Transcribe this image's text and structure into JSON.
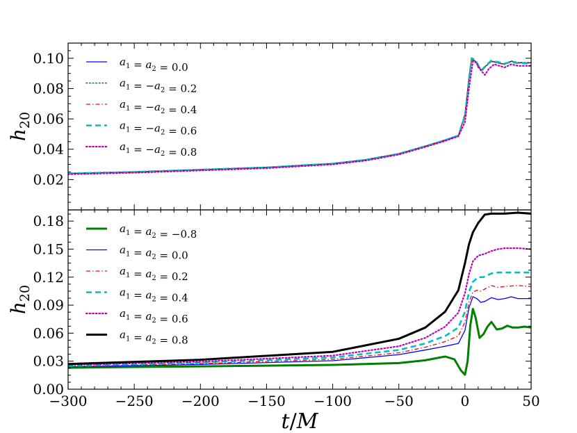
{
  "chart_data": [
    {
      "type": "line",
      "panel": "top",
      "ylabel": "h20",
      "ylabel_main": "h",
      "ylabel_sub": "20",
      "xlim": [
        -300,
        50
      ],
      "ylim": [
        0.0,
        0.11
      ],
      "yticks": [
        0.02,
        0.04,
        0.06,
        0.08,
        0.1
      ],
      "ytick_labels": [
        "0.02",
        "0.04",
        "0.06",
        "0.08",
        "0.10"
      ],
      "legend_position": "upper-left",
      "grid": false,
      "series": [
        {
          "name": "a1 = a2 = 0.0",
          "color": "#0000ff",
          "style": "solid",
          "width": 1.3,
          "x": [
            -300,
            -250,
            -200,
            -150,
            -100,
            -75,
            -50,
            -30,
            -15,
            -5,
            0,
            3,
            5,
            8,
            10,
            13,
            16,
            20,
            25,
            30,
            35,
            40,
            50
          ],
          "y": [
            0.024,
            0.025,
            0.0265,
            0.028,
            0.0305,
            0.033,
            0.037,
            0.042,
            0.046,
            0.049,
            0.063,
            0.087,
            0.099,
            0.098,
            0.094,
            0.092,
            0.095,
            0.098,
            0.097,
            0.096,
            0.098,
            0.097,
            0.097
          ]
        },
        {
          "name": "a1 = −a2 = 0.2",
          "color": "#008000",
          "style": "dotted",
          "width": 1.5,
          "x": [
            -300,
            -250,
            -200,
            -150,
            -100,
            -75,
            -50,
            -30,
            -15,
            -5,
            0,
            3,
            5,
            8,
            10,
            13,
            16,
            20,
            25,
            30,
            35,
            40,
            50
          ],
          "y": [
            0.0242,
            0.0252,
            0.0267,
            0.0282,
            0.0307,
            0.0332,
            0.0372,
            0.0422,
            0.0462,
            0.0492,
            0.0632,
            0.0872,
            0.0992,
            0.0982,
            0.0942,
            0.0922,
            0.0952,
            0.0982,
            0.0972,
            0.0962,
            0.0982,
            0.0972,
            0.0972
          ]
        },
        {
          "name": "a1 = −a2 = 0.4",
          "color": "#ff0000",
          "style": "dashdot",
          "width": 1.3,
          "x": [
            -300,
            -250,
            -200,
            -150,
            -100,
            -75,
            -50,
            -30,
            -15,
            -5,
            0,
            3,
            5,
            8,
            10,
            13,
            16,
            20,
            25,
            30,
            35,
            40,
            50
          ],
          "y": [
            0.0238,
            0.0248,
            0.0263,
            0.0278,
            0.0303,
            0.0328,
            0.0368,
            0.0418,
            0.0458,
            0.0488,
            0.0628,
            0.0868,
            0.0988,
            0.0978,
            0.0938,
            0.0918,
            0.0948,
            0.0978,
            0.0968,
            0.0958,
            0.0978,
            0.0968,
            0.0968
          ]
        },
        {
          "name": "a1 = −a2 = 0.6",
          "color": "#00bfbf",
          "style": "dashed",
          "width": 2.6,
          "x": [
            -300,
            -250,
            -200,
            -150,
            -100,
            -75,
            -50,
            -30,
            -15,
            -5,
            0,
            3,
            5,
            8,
            10,
            13,
            16,
            20,
            25,
            30,
            35,
            40,
            50
          ],
          "y": [
            0.024,
            0.025,
            0.0265,
            0.028,
            0.0305,
            0.033,
            0.037,
            0.042,
            0.046,
            0.049,
            0.062,
            0.086,
            0.1,
            0.099,
            0.095,
            0.0925,
            0.0955,
            0.0985,
            0.0975,
            0.0965,
            0.0975,
            0.0968,
            0.0965
          ]
        },
        {
          "name": "a1 = −a2 = 0.8",
          "color": "#bf00bf",
          "style": "dotted",
          "width": 2.2,
          "x": [
            -300,
            -250,
            -200,
            -150,
            -100,
            -75,
            -50,
            -30,
            -15,
            -5,
            0,
            3,
            6,
            9,
            12,
            15,
            18,
            22,
            26,
            30,
            35,
            40,
            50
          ],
          "y": [
            0.0235,
            0.0245,
            0.026,
            0.0275,
            0.03,
            0.0325,
            0.0365,
            0.0415,
            0.0455,
            0.0485,
            0.058,
            0.08,
            0.098,
            0.097,
            0.092,
            0.089,
            0.093,
            0.096,
            0.095,
            0.094,
            0.096,
            0.095,
            0.095
          ]
        }
      ]
    },
    {
      "type": "line",
      "panel": "bottom",
      "xlabel": "t/M",
      "ylabel": "h20",
      "ylabel_main": "h",
      "ylabel_sub": "20",
      "xlim": [
        -300,
        50
      ],
      "ylim": [
        0.0,
        0.192
      ],
      "xticks": [
        -300,
        -250,
        -200,
        -150,
        -100,
        -50,
        0,
        50
      ],
      "xtick_labels": [
        "−300",
        "−250",
        "−200",
        "−150",
        "−100",
        "−50",
        "0",
        "50"
      ],
      "yticks": [
        0.0,
        0.03,
        0.06,
        0.09,
        0.12,
        0.15,
        0.18
      ],
      "ytick_labels": [
        "0.00",
        "0.03",
        "0.06",
        "0.09",
        "0.12",
        "0.15",
        "0.18"
      ],
      "legend_position": "upper-left",
      "grid": false,
      "series": [
        {
          "name": "a1 = a2 = −0.8",
          "color": "#008000",
          "style": "solid",
          "width": 3,
          "x": [
            -300,
            -200,
            -100,
            -50,
            -30,
            -15,
            -8,
            -3,
            0,
            2,
            4,
            6,
            8,
            11,
            14,
            17,
            20,
            24,
            28,
            32,
            36,
            40,
            45,
            50
          ],
          "y": [
            0.023,
            0.0245,
            0.026,
            0.028,
            0.031,
            0.035,
            0.032,
            0.02,
            0.0155,
            0.03,
            0.068,
            0.086,
            0.077,
            0.055,
            0.059,
            0.067,
            0.072,
            0.064,
            0.065,
            0.068,
            0.066,
            0.066,
            0.067,
            0.066
          ]
        },
        {
          "name": "a1 = a2 = 0.0",
          "color": "#0000ff",
          "style": "solid",
          "width": 1.3,
          "x": [
            -300,
            -200,
            -100,
            -50,
            -30,
            -15,
            -5,
            0,
            3,
            6,
            9,
            12,
            15,
            20,
            25,
            30,
            35,
            40,
            50
          ],
          "y": [
            0.024,
            0.0265,
            0.0305,
            0.037,
            0.042,
            0.046,
            0.049,
            0.063,
            0.087,
            0.099,
            0.097,
            0.093,
            0.094,
            0.098,
            0.096,
            0.097,
            0.099,
            0.097,
            0.097
          ]
        },
        {
          "name": "a1 = a2 = 0.2",
          "color": "#ff0000",
          "style": "dashdot",
          "width": 1.3,
          "x": [
            -300,
            -200,
            -100,
            -50,
            -30,
            -15,
            -5,
            0,
            3,
            6,
            9,
            12,
            16,
            20,
            25,
            30,
            40,
            50
          ],
          "y": [
            0.0245,
            0.0275,
            0.032,
            0.039,
            0.045,
            0.051,
            0.057,
            0.072,
            0.093,
            0.104,
            0.106,
            0.105,
            0.108,
            0.111,
            0.109,
            0.11,
            0.111,
            0.11
          ]
        },
        {
          "name": "a1 = a2 = 0.4",
          "color": "#00bfbf",
          "style": "dashed",
          "width": 2.6,
          "x": [
            -300,
            -200,
            -100,
            -50,
            -30,
            -15,
            -5,
            0,
            3,
            6,
            10,
            14,
            20,
            25,
            30,
            40,
            50
          ],
          "y": [
            0.025,
            0.0285,
            0.034,
            0.042,
            0.049,
            0.057,
            0.066,
            0.083,
            0.104,
            0.115,
            0.12,
            0.12,
            0.124,
            0.125,
            0.125,
            0.125,
            0.125
          ]
        },
        {
          "name": "a1 = a2 = 0.6",
          "color": "#bf00bf",
          "style": "dotted",
          "width": 2.2,
          "x": [
            -300,
            -200,
            -100,
            -50,
            -30,
            -15,
            -5,
            0,
            3,
            6,
            10,
            15,
            20,
            25,
            30,
            40,
            50
          ],
          "y": [
            0.026,
            0.0295,
            0.036,
            0.046,
            0.055,
            0.067,
            0.082,
            0.103,
            0.123,
            0.137,
            0.143,
            0.145,
            0.148,
            0.15,
            0.151,
            0.151,
            0.15
          ]
        },
        {
          "name": "a1 = a2 = 0.8",
          "color": "#000000",
          "style": "solid",
          "width": 3,
          "x": [
            -300,
            -200,
            -100,
            -50,
            -30,
            -15,
            -5,
            0,
            3,
            6,
            10,
            15,
            20,
            30,
            40,
            50
          ],
          "y": [
            0.027,
            0.0315,
            0.04,
            0.054,
            0.066,
            0.083,
            0.106,
            0.135,
            0.155,
            0.168,
            0.178,
            0.187,
            0.188,
            0.188,
            0.189,
            0.188
          ]
        }
      ]
    }
  ]
}
